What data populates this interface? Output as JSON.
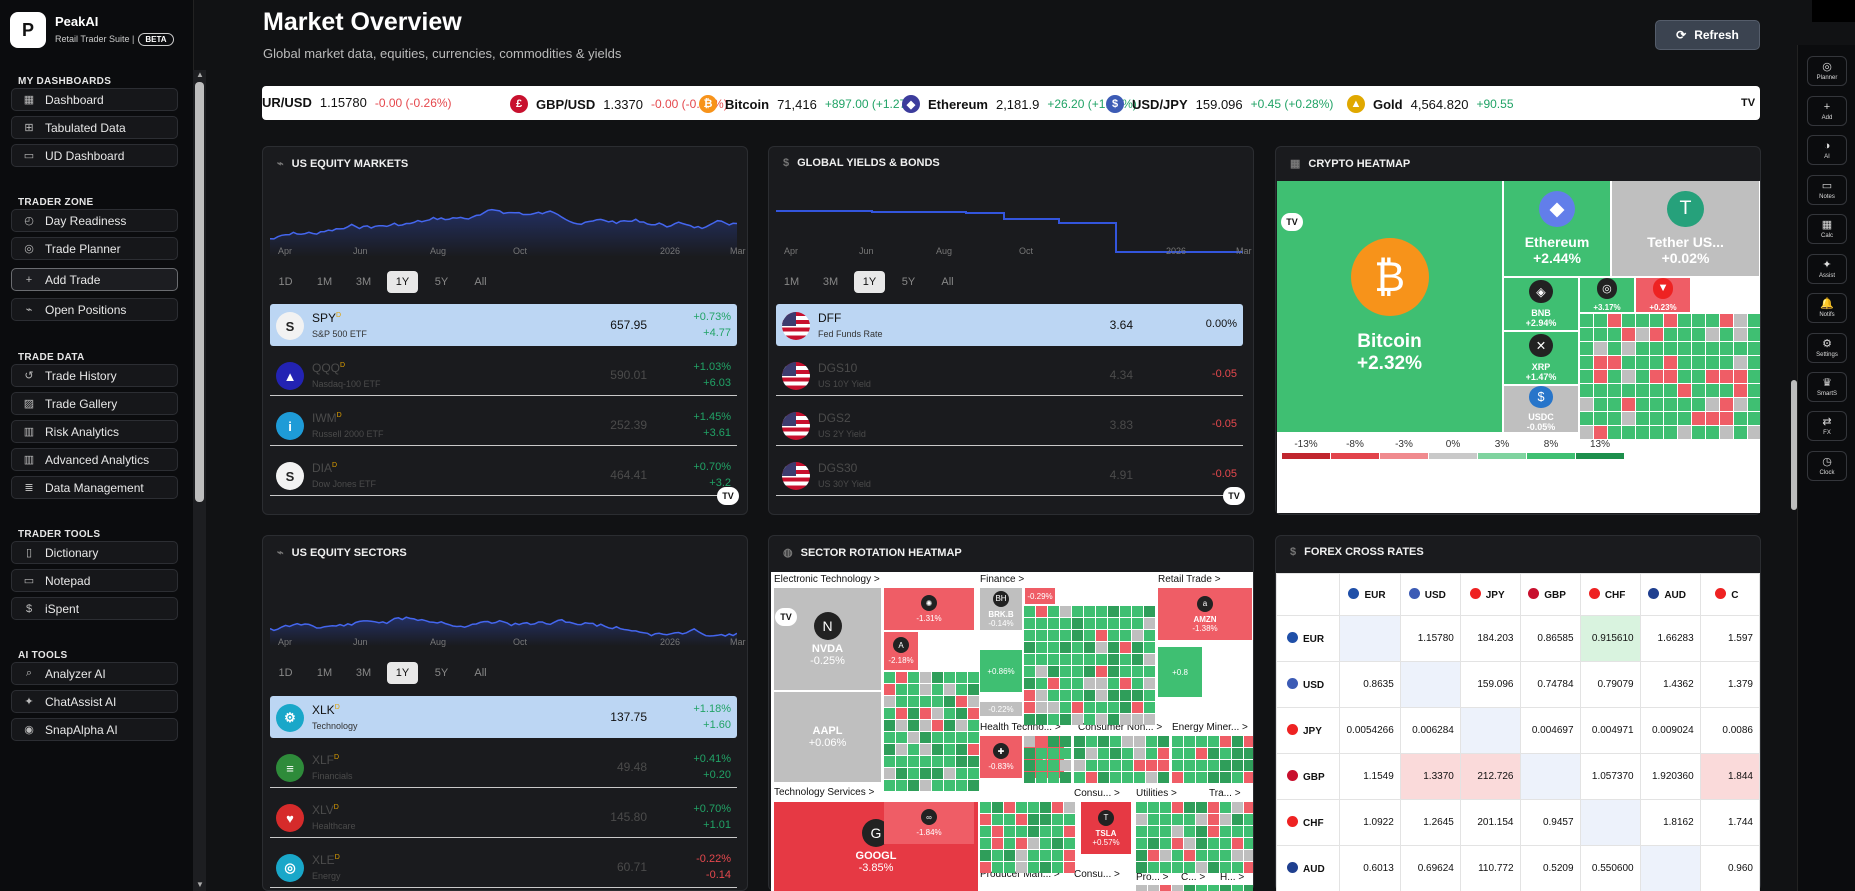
{
  "brand": {
    "logo": "P",
    "name": "PeakAI",
    "subtitle": "Retail Trader Suite |",
    "badge": "BETA"
  },
  "sidebar": {
    "sections": [
      {
        "title": "MY DASHBOARDS",
        "items": [
          {
            "icon": "▦",
            "label": "Dashboard"
          },
          {
            "icon": "⊞",
            "label": "Tabulated Data"
          },
          {
            "icon": "▭",
            "label": "UD Dashboard"
          }
        ]
      },
      {
        "title": "TRADER ZONE",
        "items": [
          {
            "icon": "◴",
            "label": "Day Readiness"
          },
          {
            "icon": "◎",
            "label": "Trade Planner"
          },
          {
            "icon": "+",
            "label": "Add Trade"
          },
          {
            "icon": "⌁",
            "label": "Open Positions"
          }
        ]
      },
      {
        "title": "TRADE DATA",
        "items": [
          {
            "icon": "↺",
            "label": "Trade History"
          },
          {
            "icon": "▨",
            "label": "Trade Gallery"
          },
          {
            "icon": "▥",
            "label": "Risk Analytics"
          },
          {
            "icon": "▥",
            "label": "Advanced Analytics"
          },
          {
            "icon": "≣",
            "label": "Data Management"
          }
        ]
      },
      {
        "title": "TRADER TOOLS",
        "items": [
          {
            "icon": "▯",
            "label": "Dictionary"
          },
          {
            "icon": "▭",
            "label": "Notepad"
          },
          {
            "icon": "$",
            "label": "iSpent"
          }
        ]
      },
      {
        "title": "AI TOOLS",
        "items": [
          {
            "icon": "⌕",
            "label": "Analyzer AI"
          },
          {
            "icon": "✦",
            "label": "ChatAssist AI"
          },
          {
            "icon": "◉",
            "label": "SnapAlpha AI"
          }
        ]
      }
    ]
  },
  "header": {
    "title": "Market Overview",
    "subtitle": "Global market data, equities, currencies, commodities & yields",
    "refresh": "Refresh"
  },
  "ticker": [
    {
      "sym": "UR/USD",
      "price": "1.15780",
      "change": "-0.00 (-0.26%)",
      "dir": "neg",
      "icon": "",
      "color": ""
    },
    {
      "sym": "GBP/USD",
      "price": "1.3370",
      "change": "-0.00 (-0.31%)",
      "dir": "neg",
      "icon": "£",
      "color": "#c8102e"
    },
    {
      "sym": "Bitcoin",
      "price": "71,416",
      "change": "+897.00 (+1.27%",
      "dir": "pos",
      "icon": "₿",
      "color": "#f7931a"
    },
    {
      "sym": "Ethereum",
      "price": "2,181.9",
      "change": "+26.20 (+1.22%)",
      "dir": "pos",
      "icon": "◆",
      "color": "#3c3c9c"
    },
    {
      "sym": "USD/JPY",
      "price": "159.096",
      "change": "+0.45 (+0.28%)",
      "dir": "pos",
      "icon": "$",
      "color": "#3c5bb5"
    },
    {
      "sym": "Gold",
      "price": "4,564.820",
      "change": "+90.55",
      "dir": "pos",
      "icon": "▲",
      "color": "#e0a800"
    }
  ],
  "tv_logo": "TV",
  "equity": {
    "title": "US EQUITY MARKETS",
    "axis": [
      "Apr",
      "Jun",
      "Aug",
      "Oct",
      "2026",
      "Mar"
    ],
    "ranges": [
      "1D",
      "1M",
      "3M",
      "1Y",
      "5Y",
      "All"
    ],
    "selected_range": "1Y",
    "rows": [
      {
        "sym": "SPY",
        "desc": "S&P 500 ETF",
        "price": "657.95",
        "c1": "+0.73%",
        "c2": "+4.77",
        "icon": "S",
        "bg": "#f2f2f2",
        "fg": "#222"
      },
      {
        "sym": "QQQ",
        "desc": "Nasdaq-100 ETF",
        "price": "590.01",
        "c1": "+1.03%",
        "c2": "+6.03",
        "icon": "▲",
        "bg": "#2323b3",
        "fg": "#fff"
      },
      {
        "sym": "IWM",
        "desc": "Russell 2000 ETF",
        "price": "252.39",
        "c1": "+1.45%",
        "c2": "+3.61",
        "icon": "i",
        "bg": "#1e9bd7",
        "fg": "#fff"
      },
      {
        "sym": "DIA",
        "desc": "Dow Jones ETF",
        "price": "464.41",
        "c1": "+0.70%",
        "c2": "+3.2",
        "icon": "S",
        "bg": "#f2f2f2",
        "fg": "#222"
      }
    ]
  },
  "yields": {
    "title": "GLOBAL YIELDS & BONDS",
    "axis": [
      "Apr",
      "Jun",
      "Aug",
      "Oct",
      "2026",
      "Mar"
    ],
    "ranges": [
      "1M",
      "3M",
      "1Y",
      "5Y",
      "All"
    ],
    "selected_range": "1Y",
    "rows": [
      {
        "sym": "DFF",
        "desc": "Fed Funds Rate",
        "price": "3.64",
        "c1": "0.00%",
        "dir": "flat"
      },
      {
        "sym": "DGS10",
        "desc": "US 10Y Yield",
        "price": "4.34",
        "c1": "-0.05",
        "dir": "neg"
      },
      {
        "sym": "DGS2",
        "desc": "US 2Y Yield",
        "price": "3.83",
        "c1": "-0.05",
        "dir": "neg"
      },
      {
        "sym": "DGS30",
        "desc": "US 30Y Yield",
        "price": "4.91",
        "c1": "-0.05",
        "dir": "neg"
      }
    ]
  },
  "crypto": {
    "title": "CRYPTO HEATMAP",
    "cells": [
      {
        "name": "Bitcoin",
        "chg": "+2.32%",
        "icon": "₿",
        "ic": "#f7931a"
      },
      {
        "name": "Ethereum",
        "chg": "+2.44%",
        "icon": "◆",
        "ic": "#627eea"
      },
      {
        "name": "Tether US...",
        "chg": "+0.02%",
        "icon": "T",
        "ic": "#26a17b"
      },
      {
        "name": "BNB",
        "chg": "+2.94%",
        "icon": "◈",
        "ic": "#222"
      },
      {
        "name": "XRP",
        "chg": "+1.47%",
        "icon": "✕",
        "ic": "#222"
      },
      {
        "name": "USDC",
        "chg": "-0.05%",
        "icon": "$",
        "ic": "#2775ca"
      },
      {
        "name": "",
        "chg": "+3.17%",
        "icon": "◎",
        "ic": "#222"
      },
      {
        "name": "",
        "chg": "+0.23%",
        "icon": "▼",
        "ic": "#e22"
      }
    ],
    "legend": [
      "-13%",
      "-8%",
      "-3%",
      "0%",
      "3%",
      "8%",
      "13%"
    ]
  },
  "sectors": {
    "title": "US EQUITY SECTORS",
    "axis": [
      "Apr",
      "Jun",
      "Aug",
      "Oct",
      "2026",
      "Mar"
    ],
    "ranges": [
      "1D",
      "1M",
      "3M",
      "1Y",
      "5Y",
      "All"
    ],
    "selected_range": "1Y",
    "rows": [
      {
        "sym": "XLK",
        "desc": "Technology",
        "price": "137.75",
        "c1": "+1.18%",
        "c2": "+1.60",
        "icon": "⚙",
        "bg": "#19a7c9"
      },
      {
        "sym": "XLF",
        "desc": "Financials",
        "price": "49.48",
        "c1": "+0.41%",
        "c2": "+0.20",
        "icon": "≡",
        "bg": "#2e8b3a"
      },
      {
        "sym": "XLV",
        "desc": "Healthcare",
        "price": "145.80",
        "c1": "+0.70%",
        "c2": "+1.01",
        "icon": "♥",
        "bg": "#d62b2b"
      },
      {
        "sym": "XLE",
        "desc": "Energy",
        "price": "60.71",
        "c1": "-0.22%",
        "c2": "-0.14",
        "icon": "◎",
        "bg": "#19a7c9"
      }
    ]
  },
  "rotation": {
    "title": "SECTOR ROTATION HEATMAP",
    "groups": [
      "Electronic Technology >",
      "Finance >",
      "Retail Trade >",
      "Health Techno... >",
      "Consumer Non... >",
      "Energy Miner... >",
      "Technology Services >",
      "Consu... >",
      "Utilities >",
      "Tra... >",
      "Producer Man... >",
      "Consu... >",
      "Pro... >",
      "C... >",
      "H... >"
    ],
    "cells": [
      {
        "name": "NVDA",
        "chg": "-0.25%",
        "icon": "N"
      },
      {
        "name": "AAPL",
        "chg": "+0.06%",
        "icon": ""
      },
      {
        "name": "",
        "chg": "-1.31%",
        "icon": "✺"
      },
      {
        "name": "",
        "chg": "-2.18%",
        "icon": "A"
      },
      {
        "name": "BRK.B",
        "chg": "-0.14%",
        "icon": "BH"
      },
      {
        "name": "",
        "chg": "+0.86%",
        "icon": ""
      },
      {
        "name": "",
        "chg": "-0.22%",
        "icon": ""
      },
      {
        "name": "",
        "chg": "-0.29%",
        "icon": ""
      },
      {
        "name": "AMZN",
        "chg": "-1.38%",
        "icon": "a"
      },
      {
        "name": "",
        "chg": "+0.8",
        "icon": ""
      },
      {
        "name": "",
        "chg": "-0.83%",
        "icon": "✚"
      },
      {
        "name": "",
        "chg": "-0.",
        "icon": ""
      },
      {
        "name": "GOOGL",
        "chg": "-3.85%",
        "icon": "G"
      },
      {
        "name": "",
        "chg": "-1.84%",
        "icon": "∞"
      },
      {
        "name": "TSLA",
        "chg": "+0.57%",
        "icon": "T"
      }
    ]
  },
  "forex": {
    "title": "FOREX CROSS RATES",
    "cols": [
      {
        "c": "EUR",
        "f": "#1f4fa8"
      },
      {
        "c": "USD",
        "f": "#3c5bb5"
      },
      {
        "c": "JPY",
        "f": "#e22"
      },
      {
        "c": "GBP",
        "f": "#c8102e"
      },
      {
        "c": "CHF",
        "f": "#e22"
      },
      {
        "c": "AUD",
        "f": "#1f3f8f"
      },
      {
        "c": "C",
        "f": "#e22"
      }
    ],
    "rows": [
      {
        "c": "EUR",
        "v": [
          "",
          "1.15780",
          "184.203",
          "0.86585",
          "0.915610",
          "1.66283",
          "1.597"
        ]
      },
      {
        "c": "USD",
        "v": [
          "0.8635",
          "",
          "159.096",
          "0.74784",
          "0.79079",
          "1.4362",
          "1.379"
        ]
      },
      {
        "c": "JPY",
        "v": [
          "0.0054266",
          "0.006284",
          "",
          "0.004697",
          "0.004971",
          "0.009024",
          "0.0086"
        ]
      },
      {
        "c": "GBP",
        "v": [
          "1.1549",
          "1.3370",
          "212.726",
          "",
          "1.057370",
          "1.920360",
          "1.844"
        ]
      },
      {
        "c": "CHF",
        "v": [
          "1.0922",
          "1.2645",
          "201.154",
          "0.9457",
          "",
          "1.8162",
          "1.744"
        ]
      },
      {
        "c": "AUD",
        "v": [
          "0.6013",
          "0.69624",
          "110.772",
          "0.5209",
          "0.550600",
          "",
          "0.960"
        ]
      }
    ]
  },
  "rail": [
    {
      "icon": "◎",
      "label": "Planner"
    },
    {
      "icon": "+",
      "label": "Add"
    },
    {
      "icon": "◑",
      "label": "AI"
    },
    {
      "icon": "▭",
      "label": "Notes"
    },
    {
      "icon": "▦",
      "label": "Calc"
    },
    {
      "icon": "✦",
      "label": "Assist"
    },
    {
      "icon": "🔔",
      "label": "Notifs"
    },
    {
      "icon": "⚙",
      "label": "Settings"
    },
    {
      "icon": "♛",
      "label": "SmartS"
    },
    {
      "icon": "⇄",
      "label": "FX"
    },
    {
      "icon": "◷",
      "label": "Clock"
    }
  ],
  "colors": {
    "pos": "#21a366",
    "neg": "#e5484d",
    "hm_green": "#3fbf72",
    "hm_red": "#ef5d66",
    "hm_gray": "#bfbfbf",
    "selected_row": "#bcd6f3"
  }
}
